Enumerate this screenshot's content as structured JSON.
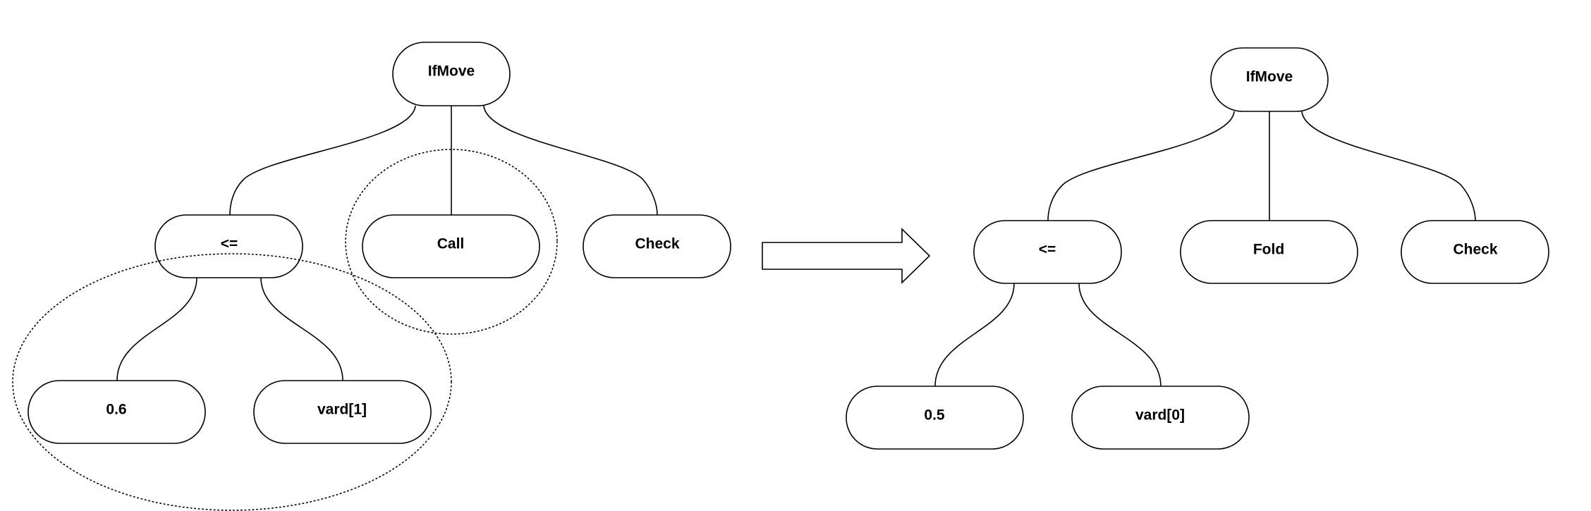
{
  "before_tree": {
    "root": "IfMove",
    "condition": "<=",
    "left_operand": "0.6",
    "right_operand": "vard[1]",
    "then_action": "Call",
    "else_action": "Check"
  },
  "after_tree": {
    "root": "IfMove",
    "condition": "<=",
    "left_operand": "0.5",
    "right_operand": "vard[0]",
    "then_action": "Fold",
    "else_action": "Check"
  },
  "colors": {
    "stroke": "#000000",
    "fill": "#ffffff"
  }
}
